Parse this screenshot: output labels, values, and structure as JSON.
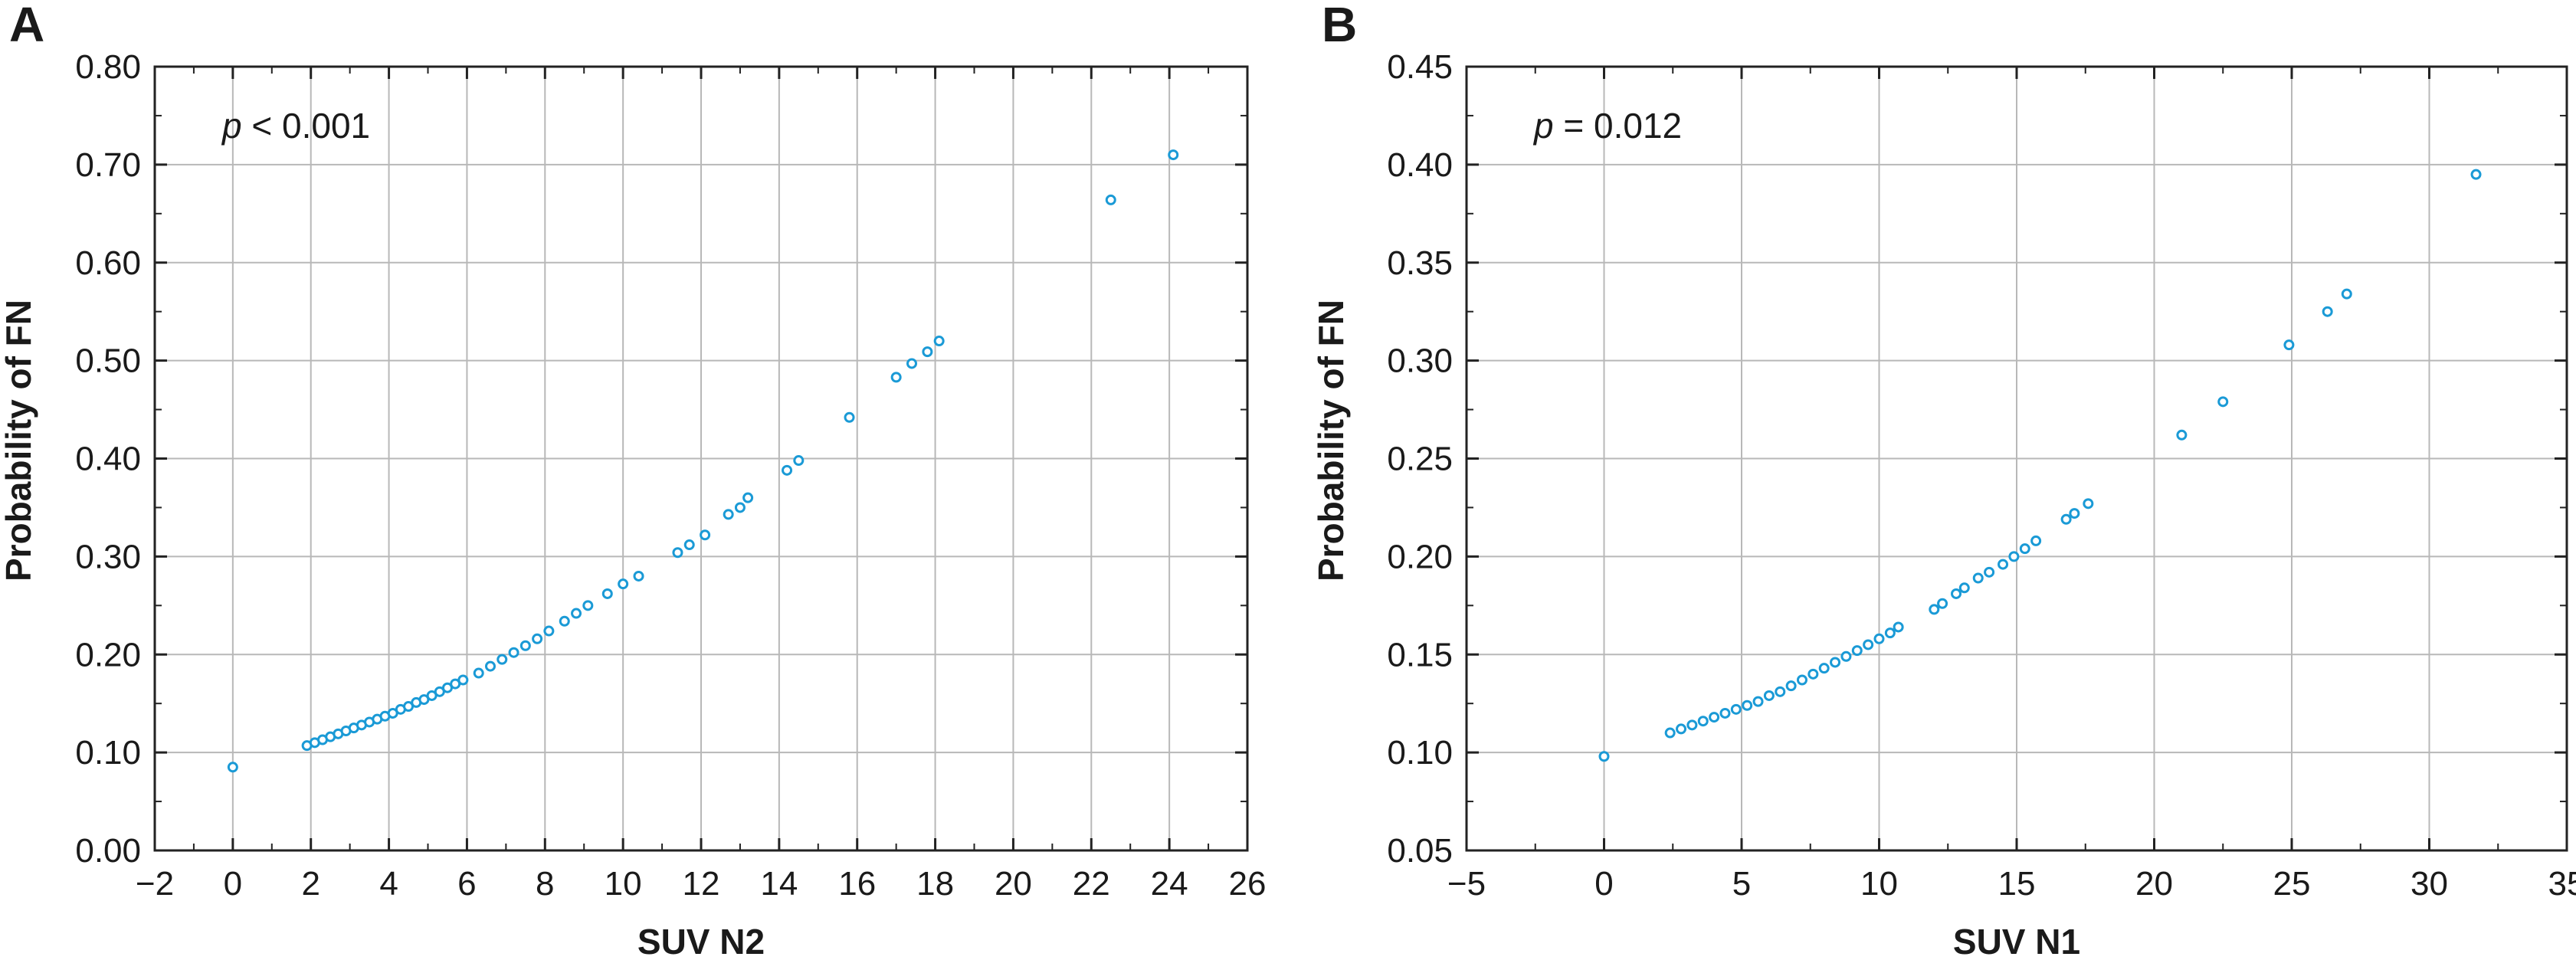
{
  "chart_data": [
    {
      "type": "scatter",
      "panel": "A",
      "xlabel": "SUV N2",
      "ylabel": "Probability of FN",
      "xlim": [
        -2,
        26
      ],
      "ylim": [
        0,
        0.8
      ],
      "xticks": [
        -2,
        0,
        2,
        4,
        6,
        8,
        10,
        12,
        14,
        16,
        18,
        20,
        22,
        24,
        26
      ],
      "xtick_labels": [
        "−2",
        "0",
        "2",
        "4",
        "6",
        "8",
        "10",
        "12",
        "14",
        "16",
        "18",
        "20",
        "22",
        "24",
        "26"
      ],
      "yticks": [
        0,
        0.1,
        0.2,
        0.3,
        0.4,
        0.5,
        0.6,
        0.7,
        0.8
      ],
      "ytick_labels": [
        "0.00",
        "0.10",
        "0.20",
        "0.30",
        "0.40",
        "0.50",
        "0.60",
        "0.70",
        "0.80"
      ],
      "grid": true,
      "annotation": {
        "prefix": "p",
        "text": " < 0.001"
      },
      "marker_color": "#1a9ad6",
      "series": [
        {
          "name": "Probability of FN",
          "x": [
            0,
            1.9,
            2.1,
            2.3,
            2.5,
            2.7,
            2.9,
            3.1,
            3.3,
            3.5,
            3.7,
            3.9,
            4.1,
            4.3,
            4.5,
            4.7,
            4.9,
            5.1,
            5.3,
            5.5,
            5.7,
            5.9,
            6.3,
            6.6,
            6.9,
            7.2,
            7.5,
            7.8,
            8.1,
            8.5,
            8.8,
            9.1,
            9.6,
            10.0,
            10.4,
            11.4,
            11.7,
            12.1,
            12.7,
            13.0,
            13.2,
            14.2,
            14.5,
            15.8,
            17.0,
            17.4,
            17.8,
            18.1,
            22.5,
            24.1
          ],
          "y": [
            0.085,
            0.107,
            0.11,
            0.113,
            0.116,
            0.119,
            0.122,
            0.125,
            0.128,
            0.131,
            0.134,
            0.137,
            0.14,
            0.144,
            0.147,
            0.151,
            0.154,
            0.158,
            0.162,
            0.166,
            0.17,
            0.174,
            0.181,
            0.188,
            0.195,
            0.202,
            0.209,
            0.216,
            0.224,
            0.234,
            0.242,
            0.25,
            0.262,
            0.272,
            0.28,
            0.304,
            0.312,
            0.322,
            0.343,
            0.35,
            0.36,
            0.388,
            0.398,
            0.442,
            0.483,
            0.497,
            0.509,
            0.52,
            0.664,
            0.71
          ]
        }
      ]
    },
    {
      "type": "scatter",
      "panel": "B",
      "xlabel": "SUV N1",
      "ylabel": "Probability of FN",
      "xlim": [
        -5,
        35
      ],
      "ylim": [
        0.05,
        0.45
      ],
      "xticks": [
        -5,
        0,
        5,
        10,
        15,
        20,
        25,
        30,
        35
      ],
      "xtick_labels": [
        "−5",
        "0",
        "5",
        "10",
        "15",
        "20",
        "25",
        "30",
        "35"
      ],
      "yticks": [
        0.05,
        0.1,
        0.15,
        0.2,
        0.25,
        0.3,
        0.35,
        0.4,
        0.45
      ],
      "ytick_labels": [
        "0.05",
        "0.10",
        "0.15",
        "0.20",
        "0.25",
        "0.30",
        "0.35",
        "0.40",
        "0.45"
      ],
      "grid": true,
      "annotation": {
        "prefix": "p",
        "text": " = 0.012"
      },
      "marker_color": "#1a9ad6",
      "series": [
        {
          "name": "Probability of FN",
          "x": [
            0,
            2.4,
            2.8,
            3.2,
            3.6,
            4.0,
            4.4,
            4.8,
            5.2,
            5.6,
            6.0,
            6.4,
            6.8,
            7.2,
            7.6,
            8.0,
            8.4,
            8.8,
            9.2,
            9.6,
            10.0,
            10.4,
            10.7,
            12.0,
            12.3,
            12.8,
            13.1,
            13.6,
            14.0,
            14.5,
            14.9,
            15.3,
            15.7,
            16.8,
            17.1,
            17.6,
            21.0,
            22.5,
            24.9,
            26.3,
            27.0,
            31.7
          ],
          "y": [
            0.098,
            0.11,
            0.112,
            0.114,
            0.116,
            0.118,
            0.12,
            0.122,
            0.124,
            0.126,
            0.129,
            0.131,
            0.134,
            0.137,
            0.14,
            0.143,
            0.146,
            0.149,
            0.152,
            0.155,
            0.158,
            0.161,
            0.164,
            0.173,
            0.176,
            0.181,
            0.184,
            0.189,
            0.192,
            0.196,
            0.2,
            0.204,
            0.208,
            0.219,
            0.222,
            0.227,
            0.262,
            0.279,
            0.308,
            0.325,
            0.334,
            0.395
          ]
        }
      ]
    }
  ]
}
